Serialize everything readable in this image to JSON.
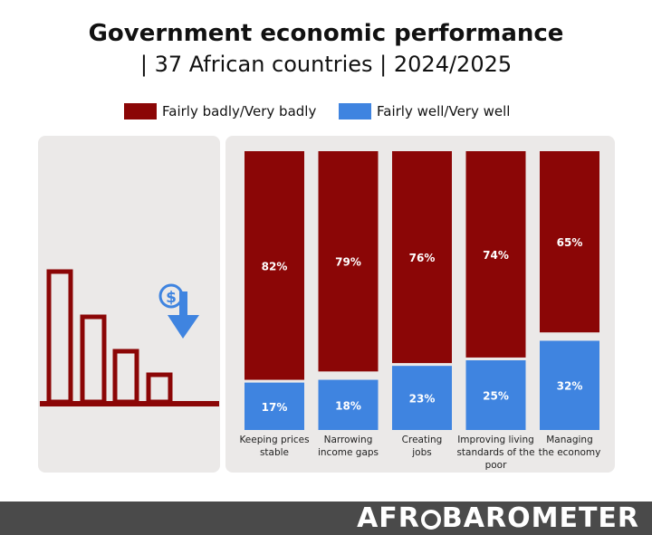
{
  "title": "Government economic performance",
  "subtitle": "| 37 African countries | 2024/2025",
  "legend": {
    "bad": "Fairly badly/Very badly",
    "good": "Fairly well/Very well"
  },
  "colors": {
    "bad": "#8b0606",
    "good": "#3f84e0",
    "panel": "#ebe9e8",
    "footer": "#4a4a4a"
  },
  "illustration": {
    "bars_icon": "declining-bar-chart-icon",
    "money_icon": "dollar-down-arrow-icon"
  },
  "brand": {
    "logo_pre": "AFR",
    "logo_post": "BAROMETER"
  },
  "chart_data": {
    "type": "bar",
    "stacked": true,
    "ylim": [
      0,
      100
    ],
    "categories": [
      [
        "Keeping prices",
        "stable"
      ],
      [
        "Narrowing",
        "income gaps"
      ],
      [
        "Creating",
        "jobs"
      ],
      [
        "Improving living",
        "standards of the",
        "poor"
      ],
      [
        "Managing",
        "the economy"
      ]
    ],
    "series": [
      {
        "name": "Fairly badly/Very badly",
        "values": [
          82,
          79,
          76,
          74,
          65
        ],
        "labels": [
          "82%",
          "79%",
          "76%",
          "74%",
          "65%"
        ]
      },
      {
        "name": "Fairly well/Very well",
        "values": [
          17,
          18,
          23,
          25,
          32
        ],
        "labels": [
          "17%",
          "18%",
          "23%",
          "25%",
          "32%"
        ]
      }
    ]
  }
}
